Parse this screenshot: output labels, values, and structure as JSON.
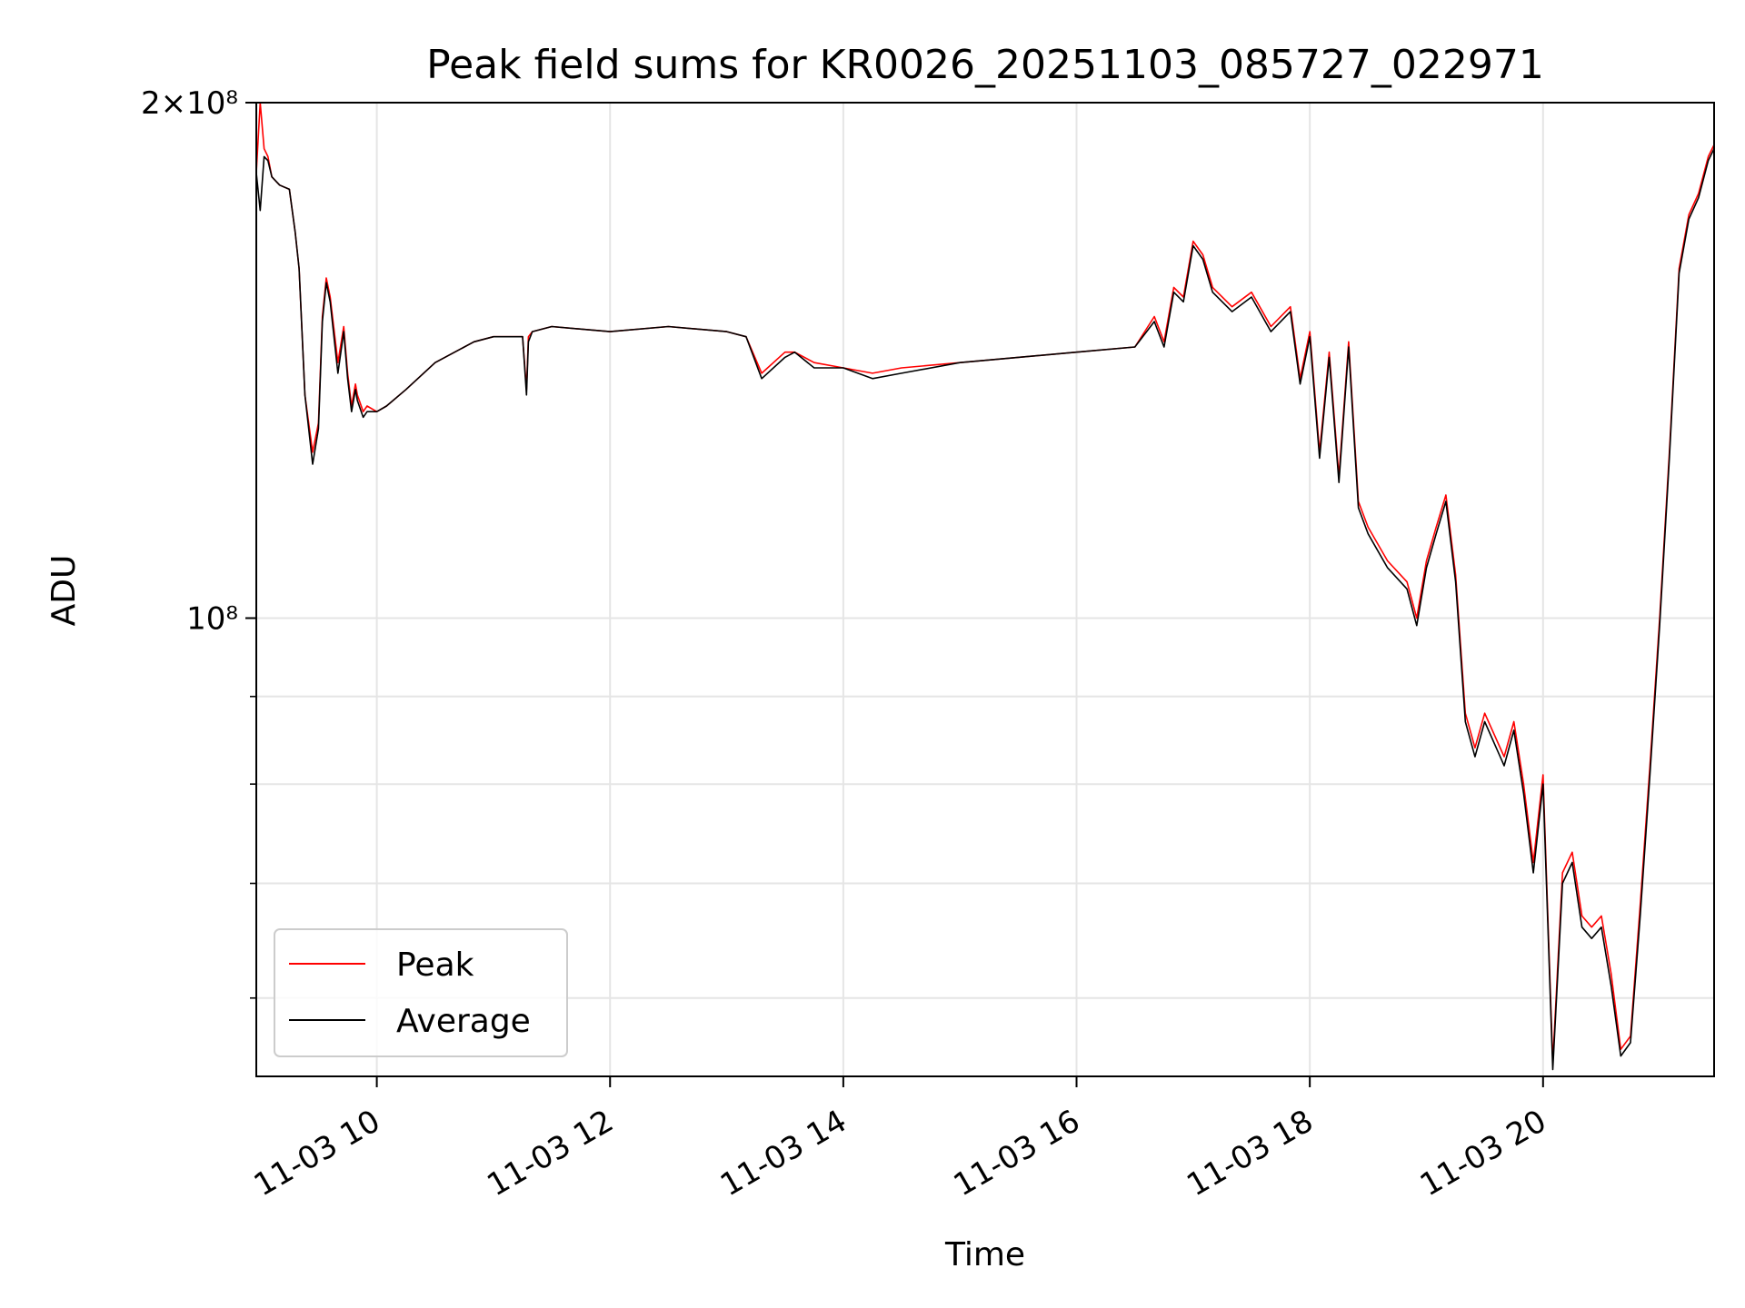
{
  "chart_data": {
    "type": "line",
    "title": "Peak field sums for KR0026_20251103_085727_022971",
    "xlabel": "Time",
    "ylabel": "ADU",
    "x_is_time": true,
    "xlim": [
      "2025-11-03 08:58",
      "2025-11-03 21:28"
    ],
    "ylim": [
      54000000,
      200000000
    ],
    "yscale": "log",
    "grid": true,
    "legend": "lower left",
    "x_ticks": [
      {
        "value": "2025-11-03 10:00",
        "label": "11-03 10"
      },
      {
        "value": "2025-11-03 12:00",
        "label": "11-03 12"
      },
      {
        "value": "2025-11-03 14:00",
        "label": "11-03 14"
      },
      {
        "value": "2025-11-03 16:00",
        "label": "11-03 16"
      },
      {
        "value": "2025-11-03 18:00",
        "label": "11-03 18"
      },
      {
        "value": "2025-11-03 20:00",
        "label": "11-03 20"
      }
    ],
    "y_ticks": [
      {
        "value": 200000000,
        "label": "2×10⁸"
      },
      {
        "value": 100000000,
        "label": "10⁸"
      }
    ],
    "y_minor_ticks": [
      60000000,
      70000000,
      80000000,
      90000000
    ],
    "x": [
      "2025-11-03 08:58",
      "2025-11-03 09:00",
      "2025-11-03 09:02",
      "2025-11-03 09:04",
      "2025-11-03 09:06",
      "2025-11-03 09:10",
      "2025-11-03 09:15",
      "2025-11-03 09:18",
      "2025-11-03 09:20",
      "2025-11-03 09:23",
      "2025-11-03 09:27",
      "2025-11-03 09:30",
      "2025-11-03 09:32",
      "2025-11-03 09:34",
      "2025-11-03 09:36",
      "2025-11-03 09:40",
      "2025-11-03 09:43",
      "2025-11-03 09:45",
      "2025-11-03 09:47",
      "2025-11-03 09:49",
      "2025-11-03 09:50",
      "2025-11-03 09:53",
      "2025-11-03 09:55",
      "2025-11-03 10:00",
      "2025-11-03 10:05",
      "2025-11-03 10:15",
      "2025-11-03 10:30",
      "2025-11-03 10:50",
      "2025-11-03 11:00",
      "2025-11-03 11:15",
      "2025-11-03 11:17",
      "2025-11-03 11:18",
      "2025-11-03 11:20",
      "2025-11-03 11:30",
      "2025-11-03 12:00",
      "2025-11-03 12:30",
      "2025-11-03 13:00",
      "2025-11-03 13:10",
      "2025-11-03 13:18",
      "2025-11-03 13:30",
      "2025-11-03 13:35",
      "2025-11-03 13:45",
      "2025-11-03 14:00",
      "2025-11-03 14:15",
      "2025-11-03 14:30",
      "2025-11-03 15:00",
      "2025-11-03 15:30",
      "2025-11-03 16:00",
      "2025-11-03 16:30",
      "2025-11-03 16:40",
      "2025-11-03 16:45",
      "2025-11-03 16:50",
      "2025-11-03 16:55",
      "2025-11-03 17:00",
      "2025-11-03 17:05",
      "2025-11-03 17:10",
      "2025-11-03 17:20",
      "2025-11-03 17:30",
      "2025-11-03 17:40",
      "2025-11-03 17:50",
      "2025-11-03 17:55",
      "2025-11-03 18:00",
      "2025-11-03 18:05",
      "2025-11-03 18:10",
      "2025-11-03 18:15",
      "2025-11-03 18:20",
      "2025-11-03 18:25",
      "2025-11-03 18:30",
      "2025-11-03 18:40",
      "2025-11-03 18:50",
      "2025-11-03 18:55",
      "2025-11-03 19:00",
      "2025-11-03 19:05",
      "2025-11-03 19:10",
      "2025-11-03 19:15",
      "2025-11-03 19:20",
      "2025-11-03 19:25",
      "2025-11-03 19:30",
      "2025-11-03 19:40",
      "2025-11-03 19:45",
      "2025-11-03 19:50",
      "2025-11-03 19:55",
      "2025-11-03 20:00",
      "2025-11-03 20:05",
      "2025-11-03 20:10",
      "2025-11-03 20:15",
      "2025-11-03 20:20",
      "2025-11-03 20:25",
      "2025-11-03 20:30",
      "2025-11-03 20:35",
      "2025-11-03 20:40",
      "2025-11-03 20:45",
      "2025-11-03 20:50",
      "2025-11-03 20:55",
      "2025-11-03 21:00",
      "2025-11-03 21:05",
      "2025-11-03 21:10",
      "2025-11-03 21:15",
      "2025-11-03 21:20",
      "2025-11-03 21:25",
      "2025-11-03 21:28"
    ],
    "series": [
      {
        "name": "Peak",
        "color": "#ff0000",
        "values": [
          182000000,
          200000000,
          188000000,
          186000000,
          181000000,
          179000000,
          178000000,
          168000000,
          160000000,
          135000000,
          125000000,
          130000000,
          150000000,
          158000000,
          154000000,
          141000000,
          148000000,
          139000000,
          133000000,
          137000000,
          135000000,
          132000000,
          133000000,
          132000000,
          133000000,
          136000000,
          141000000,
          145000000,
          146000000,
          146000000,
          136000000,
          146000000,
          147000000,
          148000000,
          147000000,
          148000000,
          147000000,
          146000000,
          139000000,
          143000000,
          143000000,
          141000000,
          140000000,
          139000000,
          140000000,
          141000000,
          142000000,
          143000000,
          144000000,
          150000000,
          145000000,
          156000000,
          154000000,
          166000000,
          163000000,
          156000000,
          152000000,
          155000000,
          148000000,
          152000000,
          138000000,
          147000000,
          125000000,
          143000000,
          121000000,
          145000000,
          117000000,
          113000000,
          108000000,
          105000000,
          100000000,
          108000000,
          113000000,
          118000000,
          106000000,
          88000000,
          84000000,
          88000000,
          83000000,
          87000000,
          80000000,
          72000000,
          81000000,
          55000000,
          71000000,
          73000000,
          67000000,
          66000000,
          67000000,
          62000000,
          56000000,
          57000000,
          68000000,
          82000000,
          100000000,
          125000000,
          160000000,
          172000000,
          177000000,
          186000000,
          189000000
        ]
      },
      {
        "name": "Average",
        "color": "#000000",
        "values": [
          182000000,
          173000000,
          186000000,
          185000000,
          181000000,
          179000000,
          178000000,
          168000000,
          160000000,
          135000000,
          123000000,
          129000000,
          149000000,
          157000000,
          153000000,
          139000000,
          147000000,
          138000000,
          132000000,
          136000000,
          134000000,
          131000000,
          132000000,
          132000000,
          133000000,
          136000000,
          141000000,
          145000000,
          146000000,
          146000000,
          135000000,
          145000000,
          147000000,
          148000000,
          147000000,
          148000000,
          147000000,
          146000000,
          138000000,
          142000000,
          143000000,
          140000000,
          140000000,
          138000000,
          139000000,
          141000000,
          142000000,
          143000000,
          144000000,
          149000000,
          144000000,
          155000000,
          153000000,
          165000000,
          162000000,
          155000000,
          151000000,
          154000000,
          147000000,
          151000000,
          137000000,
          146000000,
          124000000,
          142000000,
          120000000,
          144000000,
          116000000,
          112000000,
          107000000,
          104000000,
          99000000,
          107000000,
          112000000,
          117000000,
          105000000,
          87000000,
          83000000,
          87000000,
          82000000,
          86000000,
          79000000,
          71000000,
          80000000,
          54500000,
          70000000,
          72000000,
          66000000,
          65000000,
          66000000,
          61000000,
          55500000,
          56500000,
          67000000,
          81000000,
          99000000,
          124000000,
          159000000,
          171000000,
          176000000,
          185000000,
          188000000
        ]
      }
    ]
  }
}
